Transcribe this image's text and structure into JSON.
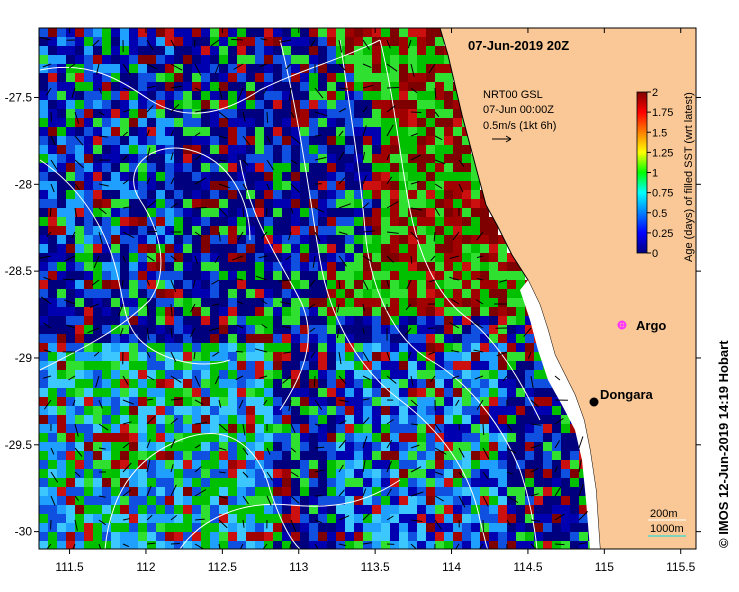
{
  "title": "07-Jun-2019 20Z",
  "overlay": {
    "product": "NRT00 GSL",
    "date": "07-Jun 00:00Z",
    "scale": "0.5m/s (1kt 6h)"
  },
  "colorbar": {
    "label": "Age (days) of filled SST (wrt latest)",
    "ticks": [
      "0",
      "0.25",
      "0.5",
      "0.75",
      "1",
      "1.25",
      "1.5",
      "1.75",
      "2"
    ],
    "colors": [
      "#00007f",
      "#0000ff",
      "#0080ff",
      "#00ffff",
      "#00ff00",
      "#ffff00",
      "#ff8000",
      "#ff0000",
      "#7f0000"
    ]
  },
  "places": [
    {
      "name": "Argo",
      "lon": 115.12,
      "lat": -28.88,
      "color": "#ff33ff"
    },
    {
      "name": "Dongara",
      "lon": 114.93,
      "lat": -29.25,
      "color": "#000000"
    }
  ],
  "isobaths": [
    "200m",
    "1000m"
  ],
  "credit": "© IMOS 12-Jun-2019 14:19 Hobart",
  "axes": {
    "x_ticks": [
      "111.5",
      "112",
      "112.5",
      "113",
      "113.5",
      "114",
      "114.5",
      "115",
      "115.5"
    ],
    "y_ticks": [
      "-27.5",
      "-28",
      "-28.5",
      "-29",
      "-29.5",
      "-30"
    ],
    "lon_range": [
      111.3,
      115.6
    ],
    "lat_range": [
      -27.1,
      -30.1
    ]
  },
  "colors": {
    "land": "#fac896",
    "ocean_deep": "#7f0000",
    "isobath_200": "#ffffff",
    "isobath_1000": "#00e0e0"
  }
}
